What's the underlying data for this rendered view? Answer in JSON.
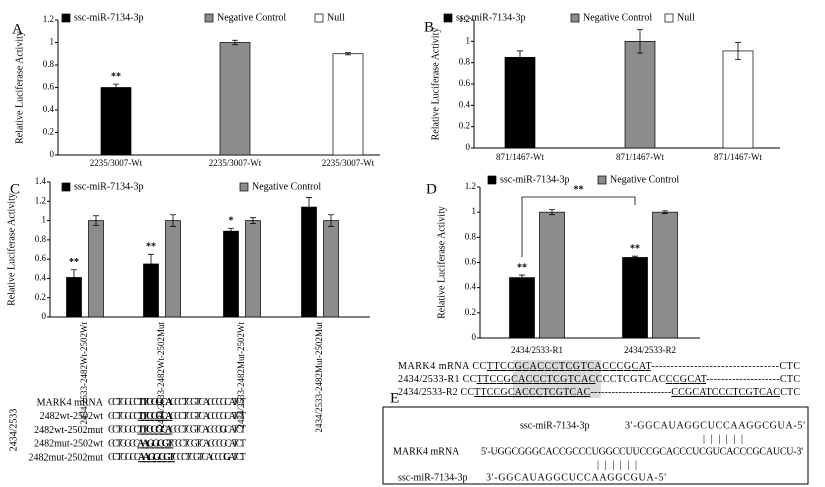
{
  "chart_data": [
    {
      "type": "bar",
      "panel": "A",
      "ylabel": "Relative Luciferase Activity",
      "categories": [
        "2235/3007-Wt",
        "2235/3007-Wt",
        "2235/3007-Wt"
      ],
      "series": [
        {
          "name": "ssc-miR-7134-3p",
          "color": "#000000",
          "values": [
            0.6,
            null,
            null
          ],
          "errors": [
            0.03,
            null,
            null
          ],
          "marks": [
            "**",
            null,
            null
          ]
        },
        {
          "name": "Negative Control",
          "color": "#8c8c8c",
          "values": [
            null,
            1.0,
            null
          ],
          "errors": [
            null,
            0.02,
            null
          ]
        },
        {
          "name": "Null",
          "color": "#ffffff",
          "values": [
            null,
            null,
            0.9
          ],
          "errors": [
            null,
            null,
            0.01
          ]
        }
      ],
      "ylim": [
        0,
        1.2
      ],
      "yticks": [
        0,
        0.2,
        0.4,
        0.6,
        0.8,
        1,
        1.2
      ]
    },
    {
      "type": "bar",
      "panel": "B",
      "ylabel": "Relative Luciferase Activity",
      "categories": [
        "871/1467-Wt",
        "871/1467-Wt",
        "871/1467-Wt"
      ],
      "series": [
        {
          "name": "ssc-miR-7134-3p",
          "color": "#000000",
          "values": [
            0.85,
            null,
            null
          ],
          "errors": [
            0.06,
            null,
            null
          ]
        },
        {
          "name": "Negative Control",
          "color": "#8c8c8c",
          "values": [
            null,
            1.0,
            null
          ],
          "errors": [
            null,
            0.11,
            null
          ]
        },
        {
          "name": "Null",
          "color": "#ffffff",
          "values": [
            null,
            null,
            0.91
          ],
          "errors": [
            null,
            null,
            0.08
          ]
        }
      ],
      "ylim": [
        0,
        1.2
      ],
      "yticks": [
        0,
        0.2,
        0.4,
        0.6,
        0.8,
        1,
        1.2
      ]
    },
    {
      "type": "bar",
      "panel": "C",
      "ylabel": "Relative Luciferase Activity",
      "categories": [
        "2434/2533-2482Wt-2502Wt",
        "2434/2533-2482Wt-2502Mut",
        "2434/2533-2482Mut-2502Wt",
        "2434/2533-2482Mut-2502Mut"
      ],
      "series": [
        {
          "name": "ssc-miR-7134-3p",
          "color": "#000000",
          "values": [
            0.41,
            0.55,
            0.89,
            1.14
          ],
          "errors": [
            0.08,
            0.1,
            0.03,
            0.1
          ],
          "marks": [
            "**",
            "**",
            "*",
            null
          ]
        },
        {
          "name": "Negative Control",
          "color": "#8c8c8c",
          "values": [
            1.0,
            1.0,
            1.0,
            1.0
          ],
          "errors": [
            0.05,
            0.06,
            0.03,
            0.06
          ]
        }
      ],
      "ylim": [
        0,
        1.4
      ],
      "yticks": [
        0,
        0.2,
        0.4,
        0.6,
        0.8,
        1,
        1.2,
        1.4
      ]
    },
    {
      "type": "bar",
      "panel": "D",
      "ylabel": "Relative Luciferase Activity",
      "categories": [
        "2434/2533-R1",
        "2434/2533-R2"
      ],
      "series": [
        {
          "name": "ssc-miR-7134-3p",
          "color": "#000000",
          "values": [
            0.48,
            0.64
          ],
          "errors": [
            0.02,
            0.01
          ],
          "marks": [
            "**",
            "**"
          ]
        },
        {
          "name": "Negative Control",
          "color": "#8c8c8c",
          "values": [
            1.0,
            1.0
          ],
          "errors": [
            0.02,
            0.01
          ]
        }
      ],
      "bracket_label": "**",
      "ylim": [
        0,
        1.2
      ],
      "yticks": [
        0,
        0.2,
        0.4,
        0.6,
        0.8,
        1,
        1.2
      ]
    }
  ],
  "sequences_c": {
    "group": "2434/2533",
    "rows": [
      {
        "label": "MARK4 mRNA",
        "parts": [
          "CCTGGCC",
          "TTCCGCA",
          "CCCTCGTCACCCGCATCT"
        ]
      },
      {
        "label": "2482wt-2502wt",
        "parts": [
          "CCTGGCC",
          "TTCCGCA",
          "CCCTCGTCACCCGCATCT"
        ]
      },
      {
        "label": "2482wt-2502mut",
        "parts": [
          "CCTGGCC",
          "TTCCGCA",
          "CCCTCGTCACCC",
          "G",
          "CATCT"
        ]
      },
      {
        "label": "2482mut-2502wt",
        "parts": [
          "CCTGGCC",
          "AAGGCGT",
          "CCCTCGTCACCCGCATCT"
        ]
      },
      {
        "label": "2482mut-2502mut",
        "parts": [
          "CCTGGCC",
          "AAGGCGT",
          "CCCTCGTCACCC",
          "G",
          "ATCT"
        ]
      }
    ]
  },
  "sequences_d": {
    "rows": [
      {
        "parts": [
          "MARK4 mRNA CC",
          "TTCCGCACCCTCGTCAC",
          "CCGCAT",
          "---------------------------------CTC"
        ]
      },
      {
        "parts": [
          "2434/2533-R1 CC",
          "TTCCGCACCCTCGTCAC",
          "CCCTCGTCAC",
          "CCGCAT",
          "--------------------CTC"
        ]
      },
      {
        "parts": [
          "2434/2533-R2 CC",
          "TTCCGCACCCTCGTCAC",
          "-----------------------",
          "CCGCAT",
          "CCCTCGTCAC",
          "CTC"
        ]
      }
    ]
  },
  "panel_e": {
    "label": "E",
    "mirna1": "ssc-miR-7134-3p",
    "mirna1_seq": "3'-GGCAUAGGCUCCAAGGCGUA-5'",
    "pair1": "||||||",
    "mrna": "MARK4 mRNA",
    "mrna_seq": "5'-UGGCGGGCACCGCCCUGGCCUUCCGCACCCUCGUCACCCGCAUCU-3'",
    "pair2": "||||||",
    "mirna2": "ssc-miR-7134-3p",
    "mirna2_seq": "3'-GGCAUAGGCUCCAAGGCGUA-5'"
  }
}
